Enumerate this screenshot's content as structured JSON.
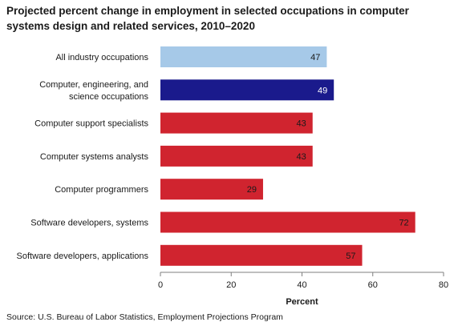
{
  "chart_data": {
    "type": "bar",
    "orientation": "horizontal",
    "title": "Projected percent change in employment in selected occupations in computer systems design and related services, 2010–2020",
    "xlabel": "Percent",
    "ylabel": "",
    "xlim": [
      0,
      80
    ],
    "xticks": [
      0,
      20,
      40,
      60,
      80
    ],
    "grid": false,
    "categories": [
      [
        "All industry occupations"
      ],
      [
        "Computer, engineering, and",
        "science occupations"
      ],
      [
        "Computer support specialists"
      ],
      [
        "Computer systems analysts"
      ],
      [
        "Computer programmers"
      ],
      [
        "Software developers, systems"
      ],
      [
        "Software developers, applications"
      ]
    ],
    "values": [
      47,
      49,
      43,
      43,
      29,
      72,
      57
    ],
    "bar_colors": [
      "#a6c9e8",
      "#1a1a8c",
      "#d0242f",
      "#d0242f",
      "#d0242f",
      "#d0242f",
      "#d0242f"
    ],
    "label_colors": [
      "#1a1a1a",
      "#ffffff",
      "#1a1a1a",
      "#1a1a1a",
      "#1a1a1a",
      "#1a1a1a",
      "#1a1a1a"
    ]
  },
  "source": "Source: U.S. Bureau of Labor Statistics, Employment Projections Program"
}
